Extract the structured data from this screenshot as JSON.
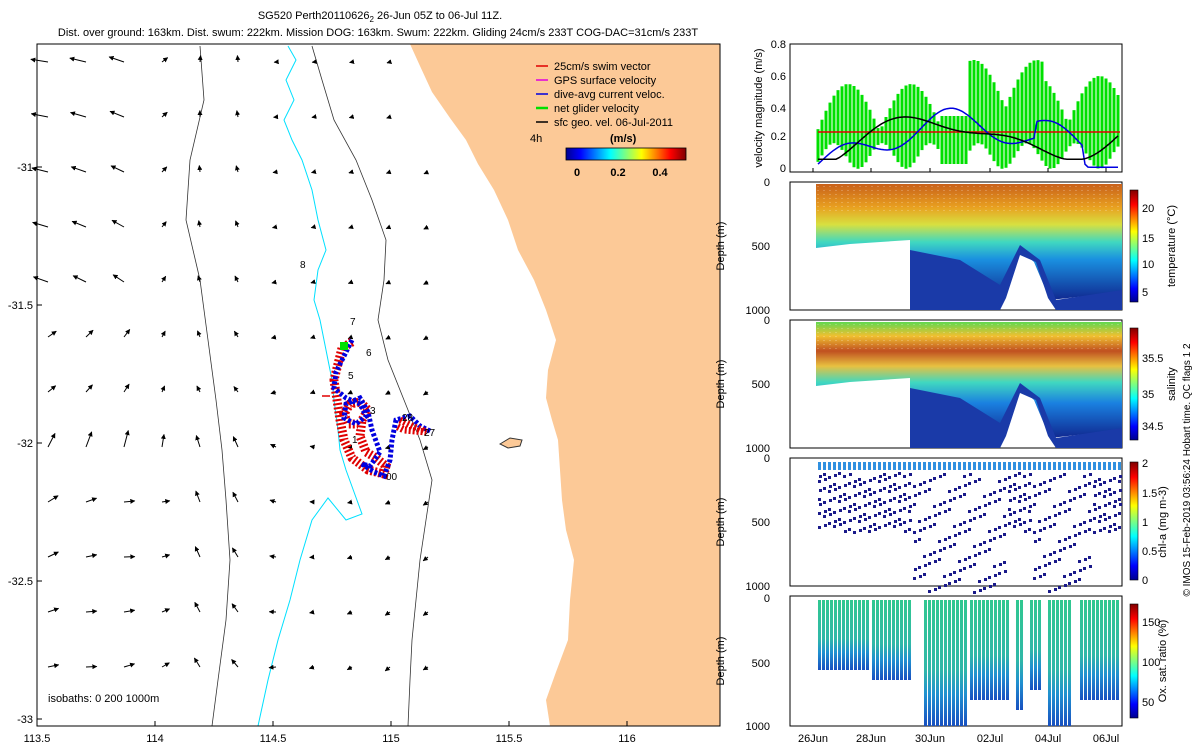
{
  "header": {
    "title_main": "SG520 Perth20110626",
    "title_sub": "2",
    "title_rest": " 26-Jun 05Z to 06-Jul 11Z.",
    "subtitle": "Dist. over ground: 163km. Dist. swum: 222km. Mission DOG: 163km. Swum: 222km. Gliding 24cm/s 233T COG-DAC=31cm/s 233T"
  },
  "colors": {
    "land": "#fcc997",
    "coast_200m": "#00e0ff",
    "swim": "#e00000",
    "gps": "#e000e0",
    "dac": "#0000e0",
    "net": "#00e000",
    "sfc": "#000000"
  },
  "map": {
    "x_ticks": [
      "113.5",
      "114",
      "114.5",
      "115",
      "115.5",
      "116"
    ],
    "y_ticks": [
      "-31",
      "-31.5",
      "-32",
      "-32.5",
      "-33"
    ],
    "legend": [
      {
        "label": "25cm/s swim vector",
        "color": "#e00000"
      },
      {
        "label": "GPS surface velocity",
        "color": "#e000e0"
      },
      {
        "label": "dive-avg current veloc.",
        "color": "#0000e0"
      },
      {
        "label": "net glider velocity",
        "color": "#00e000"
      },
      {
        "label": "sfc geo. vel. 06-Jul-2011",
        "color": "#000000"
      }
    ],
    "colorbar_title": "(m/s)",
    "colorbar_ticks": [
      "0",
      "0.2",
      "0.4"
    ],
    "duration_label": "4h",
    "isobaths_label": "isobaths: 0   200   1000m",
    "waypoints": [
      "8",
      "7",
      "6",
      "5",
      "3",
      "1",
      "28",
      "27",
      "00"
    ]
  },
  "chart_data": [
    {
      "type": "line",
      "title": "velocity magnitude",
      "ylabel": "velocity magnitude (m/s)",
      "ylim": [
        0,
        0.8
      ],
      "yticks": [
        "0",
        "0.2",
        "0.4",
        "0.6",
        "0.8"
      ],
      "x": [
        "26Jun",
        "28Jun",
        "30Jun",
        "02Jul",
        "04Jul",
        "06Jul"
      ],
      "series": [
        {
          "name": "net glider velocity",
          "values": [
            0.12,
            0.25,
            0.45,
            0.55,
            0.4,
            0.35
          ]
        },
        {
          "name": "swim",
          "values": [
            0.25,
            0.25,
            0.25,
            0.25,
            0.25,
            0.25
          ]
        },
        {
          "name": "dive-avg current",
          "values": [
            0.14,
            0.16,
            0.1,
            0.32,
            0.38,
            0.27
          ]
        },
        {
          "name": "sfc geostrophic",
          "values": [
            0.26,
            0.15,
            0.14,
            0.33,
            0.3,
            0.14
          ]
        }
      ]
    },
    {
      "type": "scatter",
      "ylabel": "Depth (m)",
      "clabel": "temperature (°C)",
      "ylim": [
        1000,
        0
      ],
      "yticks": [
        "0",
        "500",
        "1000"
      ],
      "cticks": [
        "20",
        "15",
        "10",
        "5"
      ]
    },
    {
      "type": "scatter",
      "ylabel": "Depth (m)",
      "clabel": "salinity",
      "ylim": [
        1000,
        0
      ],
      "yticks": [
        "0",
        "500",
        "1000"
      ],
      "cticks": [
        "35.5",
        "35",
        "34.5"
      ]
    },
    {
      "type": "scatter",
      "ylabel": "Depth (m)",
      "clabel": "chl-a (mg m-3)",
      "ylim": [
        1000,
        0
      ],
      "yticks": [
        "0",
        "500",
        "1000"
      ],
      "cticks": [
        "2",
        "1.5",
        "1",
        "0.5",
        "0"
      ]
    },
    {
      "type": "scatter",
      "ylabel": "Depth (m)",
      "clabel": "Ox. sat. ratio (%)",
      "ylim": [
        1000,
        0
      ],
      "yticks": [
        "0",
        "500",
        "1000"
      ],
      "cticks": [
        "150",
        "100",
        "50"
      ],
      "xticks": [
        "26Jun",
        "28Jun",
        "30Jun",
        "02Jul",
        "04Jul",
        "06Jul"
      ]
    }
  ],
  "footer": {
    "credit": "© IMOS 15-Feb-2019 03:56:24 Hobart time. QC flags 1  2"
  }
}
